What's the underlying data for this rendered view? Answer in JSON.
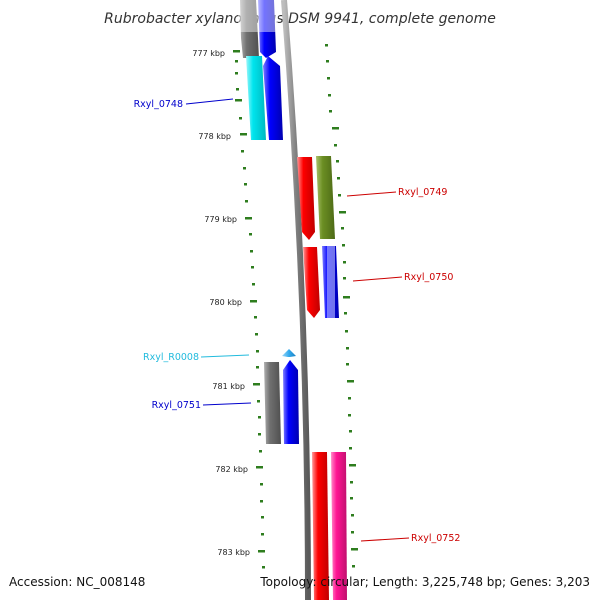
{
  "title": "Rubrobacter xylanophilus DSM 9941, complete genome",
  "accession": "Accession: NC_008148",
  "topology": "Topology: circular; Length: 3,225,748 bp; Genes: 3,203",
  "ticks": [
    "777 kbp",
    "778 kbp",
    "779 kbp",
    "780 kbp",
    "781 kbp",
    "782 kbp",
    "783 kbp"
  ],
  "colors": {
    "backbone": "#808080",
    "tick_green": "#2e7d1e",
    "red": "#ff0000",
    "olive": "#6b8e23",
    "blue": "#0000ff",
    "cyan": "#00e5ee",
    "gray": "#707070",
    "pink": "#ff1493",
    "light_blue": "#33aaee",
    "label_blue": "#0000cc",
    "label_red": "#cc0000",
    "label_cyan": "#22bbdd"
  },
  "genes": [
    {
      "id": "Rxyl_0748",
      "color": "label_blue"
    },
    {
      "id": "Rxyl_0749",
      "color": "label_red"
    },
    {
      "id": "Rxyl_0750",
      "color": "label_red"
    },
    {
      "id": "Rxyl_R0008",
      "color": "label_cyan"
    },
    {
      "id": "Rxyl_0751",
      "color": "label_blue"
    },
    {
      "id": "Rxyl_0752",
      "color": "label_red"
    }
  ]
}
